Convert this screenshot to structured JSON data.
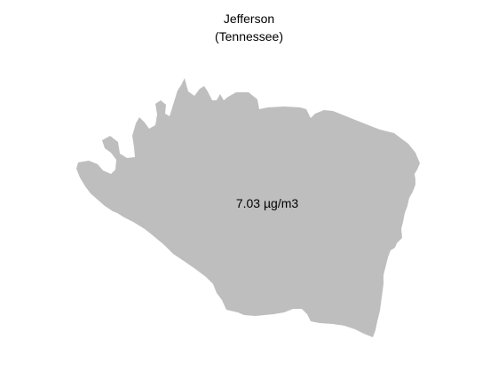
{
  "map": {
    "title": "Jefferson",
    "subtitle": "(Tennessee)",
    "value_label": "7.03 µg/m3",
    "region_fill": "#bebebe",
    "background": "#ffffff"
  }
}
